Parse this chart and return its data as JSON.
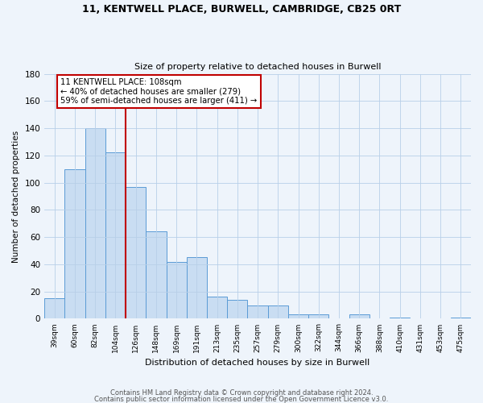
{
  "title": "11, KENTWELL PLACE, BURWELL, CAMBRIDGE, CB25 0RT",
  "subtitle": "Size of property relative to detached houses in Burwell",
  "xlabel": "Distribution of detached houses by size in Burwell",
  "ylabel": "Number of detached properties",
  "bar_labels": [
    "39sqm",
    "60sqm",
    "82sqm",
    "104sqm",
    "126sqm",
    "148sqm",
    "169sqm",
    "191sqm",
    "213sqm",
    "235sqm",
    "257sqm",
    "279sqm",
    "300sqm",
    "322sqm",
    "344sqm",
    "366sqm",
    "388sqm",
    "410sqm",
    "431sqm",
    "453sqm",
    "475sqm"
  ],
  "bar_values": [
    15,
    110,
    140,
    122,
    97,
    64,
    42,
    45,
    16,
    14,
    10,
    10,
    3,
    3,
    0,
    3,
    0,
    1,
    0,
    0,
    1
  ],
  "bar_color": "#c9ddf2",
  "bar_edge_color": "#5b9bd5",
  "highlight_line_color": "#c00000",
  "annotation_text": "11 KENTWELL PLACE: 108sqm\n← 40% of detached houses are smaller (279)\n59% of semi-detached houses are larger (411) →",
  "annotation_box_color": "#ffffff",
  "annotation_box_edge": "#c00000",
  "ylim": [
    0,
    180
  ],
  "yticks": [
    0,
    20,
    40,
    60,
    80,
    100,
    120,
    140,
    160,
    180
  ],
  "footer_line1": "Contains HM Land Registry data © Crown copyright and database right 2024.",
  "footer_line2": "Contains public sector information licensed under the Open Government Licence v3.0.",
  "bg_color": "#eef4fb"
}
